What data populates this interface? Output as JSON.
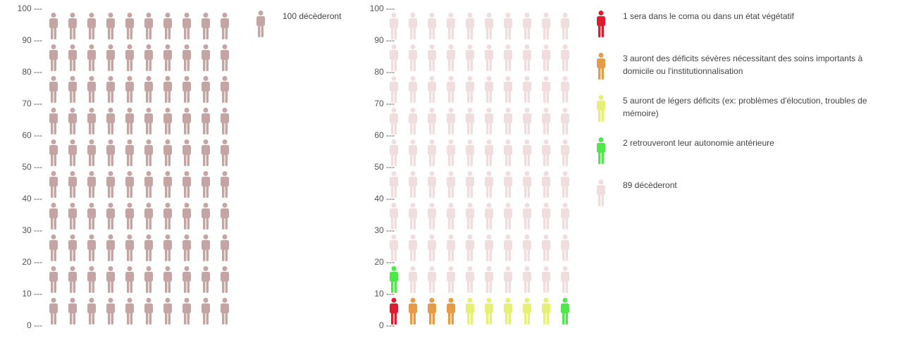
{
  "chart_data": [
    {
      "type": "icon-array",
      "y_ticks": [
        "100 ---",
        "90 ---",
        "80 ---",
        "70 ---",
        "60 ---",
        "50 ---",
        "40 ---",
        "30 ---",
        "20 ---",
        "10 ---",
        "0 ---"
      ],
      "ylim": [
        0,
        100
      ],
      "columns": 10,
      "total": 100,
      "series": [
        {
          "name": "100 décèderont",
          "count": 100,
          "color": "#c4a5a4"
        }
      ]
    },
    {
      "type": "icon-array",
      "y_ticks": [
        "100 ---",
        "90 ---",
        "80 ---",
        "70 ---",
        "60 ---",
        "50 ---",
        "40 ---",
        "30 ---",
        "20 ---",
        "10 ---",
        "0 ---"
      ],
      "ylim": [
        0,
        100
      ],
      "columns": 10,
      "total": 100,
      "series": [
        {
          "name": "1 sera dans le coma ou dans un état végétatif",
          "count": 1,
          "color": "#e01b2f"
        },
        {
          "name": "3 auront des déficits sévères nécessitant des soins importants à domicile ou l'institutionnalisation",
          "count": 3,
          "color": "#e59c44"
        },
        {
          "name": "5 auront de légers déficits (ex: problèmes d'élocution, troubles de mémoire)",
          "count": 5,
          "color": "#e6f074"
        },
        {
          "name": "2 retrouveront leur autonomie antérieure",
          "count": 2,
          "color": "#4fe84a"
        },
        {
          "name": "89 décèderont",
          "count": 89,
          "color": "#f0dede"
        }
      ]
    }
  ]
}
